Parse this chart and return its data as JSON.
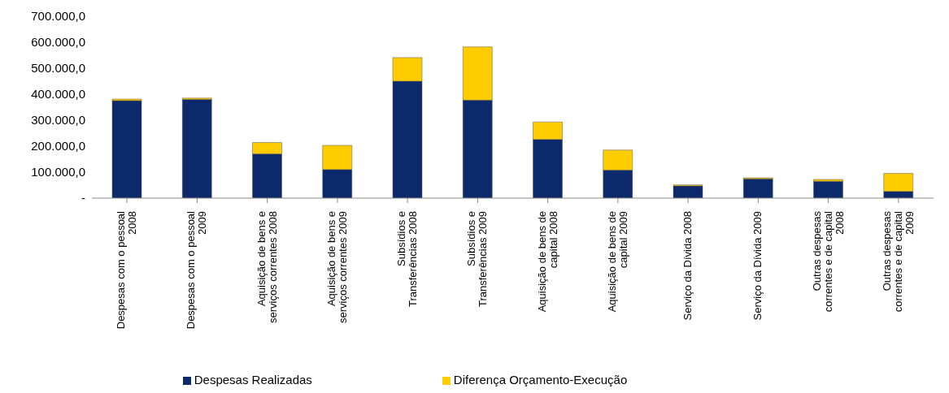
{
  "chart_data": {
    "type": "bar",
    "stacked": true,
    "categories": [
      "Despesas com o pessoal 2008",
      "Despesas com o pessoal 2009",
      "Aquisição de bens e serviços correntes 2008",
      "Aquisição de bens e serviços correntes 2009",
      "Subsídios e Transferências 2008",
      "Subsídios e Transferências 2009",
      "Aquisição de bens de capital 2008",
      "Aquisição de bens de capital 2009",
      "Serviço da Dívida 2008",
      "Serviço da Dívida 2009",
      "Outras despesas correntes e de capital 2008",
      "Outras despesas correntes e de capital 2009"
    ],
    "series": [
      {
        "name": "Despesas Realizadas",
        "color": "#0c2a6b",
        "values": [
          375000,
          380000,
          170000,
          110000,
          450000,
          377000,
          226000,
          108000,
          47000,
          74000,
          65000,
          26000
        ]
      },
      {
        "name": "Diferença Orçamento-Execução",
        "color": "#ffcc00",
        "values": [
          6000,
          5000,
          44000,
          93000,
          91000,
          205000,
          67000,
          77000,
          4000,
          4000,
          7000,
          69000
        ]
      }
    ],
    "ylim": [
      0,
      700000
    ],
    "yticks": [
      {
        "value": 0,
        "label": "-"
      },
      {
        "value": 100000,
        "label": "100.000,0"
      },
      {
        "value": 200000,
        "label": "200.000,0"
      },
      {
        "value": 300000,
        "label": "300.000,0"
      },
      {
        "value": 400000,
        "label": "400.000,0"
      },
      {
        "value": 500000,
        "label": "500.000,0"
      },
      {
        "value": 600000,
        "label": "600.000,0"
      },
      {
        "value": 700000,
        "label": "700.000,0"
      }
    ],
    "grid": false,
    "legend": "bottom"
  }
}
